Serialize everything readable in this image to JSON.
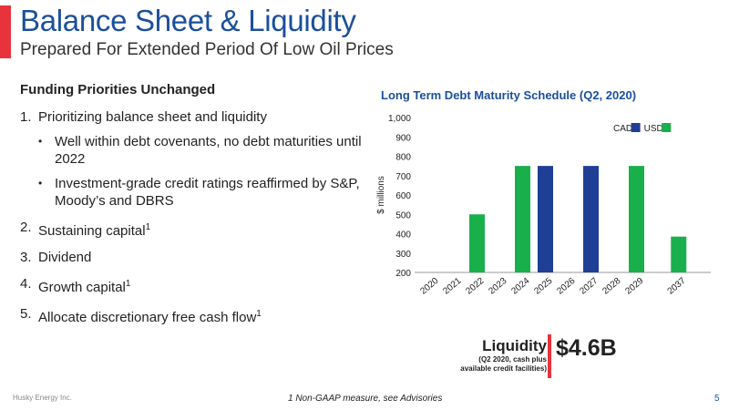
{
  "header": {
    "title": "Balance Sheet & Liquidity",
    "subtitle": "Prepared For Extended Period Of Low Oil Prices"
  },
  "funding": {
    "heading": "Funding Priorities Unchanged",
    "items": [
      {
        "num": "1.",
        "text": "Prioritizing balance sheet and liquidity",
        "sup": ""
      },
      {
        "num": "2.",
        "text": "Sustaining capital",
        "sup": "1"
      },
      {
        "num": "3.",
        "text": "Dividend",
        "sup": ""
      },
      {
        "num": "4.",
        "text": "Growth capital",
        "sup": "1"
      },
      {
        "num": "5.",
        "text": "Allocate discretionary free cash flow",
        "sup": "1"
      }
    ],
    "subitems": [
      "Well within debt covenants, no debt maturities until 2022",
      "Investment-grade credit ratings reaffirmed by S&P, Moody’s and DBRS"
    ],
    "bullet": "•"
  },
  "chart_data": {
    "type": "bar",
    "title": "Long Term Debt Maturity Schedule (Q2, 2020)",
    "ylabel": "$ millions",
    "ylim": [
      200,
      1000
    ],
    "yticks": [
      "200",
      "300",
      "400",
      "500",
      "600",
      "700",
      "800",
      "900",
      "1,000"
    ],
    "categories": [
      "2020",
      "2021",
      "2022",
      "2023",
      "2024",
      "2025",
      "2026",
      "2027",
      "2028",
      "2029",
      "2037"
    ],
    "series": [
      {
        "name": "CAD",
        "color": "#1f3f96",
        "values": [
          null,
          null,
          null,
          null,
          null,
          750,
          null,
          750,
          null,
          null,
          null
        ]
      },
      {
        "name": "USD",
        "color": "#19b04b",
        "values": [
          null,
          null,
          500,
          null,
          750,
          null,
          null,
          null,
          null,
          750,
          385
        ]
      }
    ],
    "legend_position": "top-right",
    "grid": false
  },
  "liquidity": {
    "label": "Liquidity",
    "note_line1": "(Q2 2020, cash plus",
    "note_line2": "available credit facilities)",
    "value": "$4.6B",
    "accent": "#e8323c"
  },
  "footer": {
    "company": "Husky Energy Inc.",
    "note": "1 Non-GAAP measure, see Advisories",
    "page": "5"
  }
}
